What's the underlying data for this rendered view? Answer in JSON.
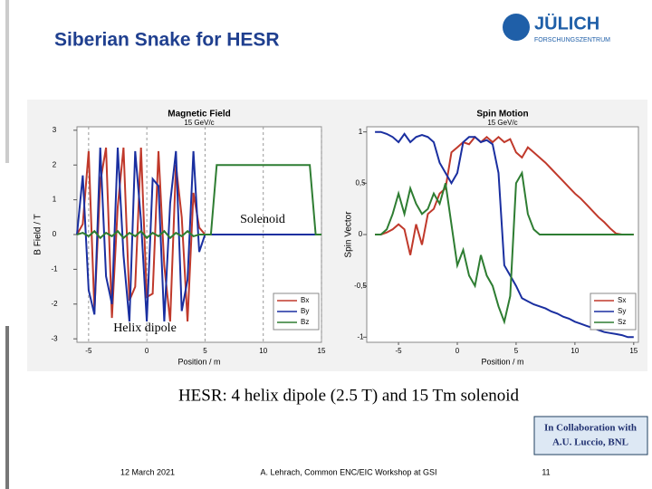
{
  "slide": {
    "title": "Siberian Snake for HESR",
    "logo": {
      "name": "JÜLICH",
      "subtitle": "FORSCHUNGSZENTRUM"
    },
    "caption": "HESR: 4 helix dipole (2.5 T) and 15 Tm solenoid",
    "note": [
      "In Collaboration with",
      "A.U. Luccio, BNL"
    ],
    "footer": {
      "date": "12 March 2021",
      "event": "A. Lehrach, Common ENC/EIC Workshop at GSI",
      "page": "11"
    }
  },
  "chart_data": [
    {
      "type": "line",
      "title": "Magnetic Field",
      "subtitle": "15 GeV/c",
      "x_label": "Position / m",
      "y_label": "B Field / T",
      "annotations": [
        "Solenoid",
        "Helix dipole"
      ],
      "x": [
        -6,
        -5.5,
        -5,
        -4.5,
        -4,
        -3.5,
        -3,
        -2.5,
        -2,
        -1.5,
        -1,
        -0.5,
        0,
        0.5,
        1,
        1.5,
        2,
        2.5,
        3,
        3.5,
        4,
        4.5,
        5,
        5.5,
        6,
        6.5,
        7,
        7.5,
        8,
        8.5,
        9,
        9.5,
        10,
        10.5,
        11,
        11.5,
        12,
        12.5,
        13,
        13.5,
        14,
        14.5,
        15
      ],
      "series": [
        {
          "name": "Bx",
          "color": "#c0392b",
          "values": [
            0,
            0.3,
            2.4,
            -2.2,
            1.5,
            2.5,
            -2.4,
            0.8,
            2.5,
            -1.9,
            -1.5,
            2.5,
            -1.8,
            -1.7,
            2.4,
            -0.9,
            -2.5,
            2.0,
            0.5,
            -2.5,
            1.2,
            0.2,
            0,
            0,
            0,
            0,
            0,
            0,
            0,
            0,
            0,
            0,
            0,
            0,
            0,
            0,
            0,
            0,
            0,
            0,
            0,
            0,
            0
          ]
        },
        {
          "name": "By",
          "color": "#1a2fa0",
          "values": [
            0,
            1.7,
            -1.6,
            -2.3,
            2.5,
            -1.2,
            -2.0,
            2.5,
            -0.6,
            -2.5,
            2.4,
            0.4,
            -2.5,
            1.6,
            1.4,
            -2.5,
            0.9,
            2.4,
            -2.2,
            -1.3,
            2.4,
            -0.5,
            0,
            0,
            0,
            0,
            0,
            0,
            0,
            0,
            0,
            0,
            0,
            0,
            0,
            0,
            0,
            0,
            0,
            0,
            0,
            0,
            0
          ]
        },
        {
          "name": "Bz",
          "color": "#2e7d32",
          "values": [
            0,
            0.05,
            -0.05,
            0.1,
            -0.1,
            0.05,
            -0.05,
            0.1,
            -0.1,
            0.05,
            -0.05,
            0.1,
            -0.1,
            0.05,
            -0.05,
            0.1,
            -0.1,
            0.05,
            -0.05,
            0.1,
            -0.05,
            0,
            0,
            0,
            2,
            2,
            2,
            2,
            2,
            2,
            2,
            2,
            2,
            2,
            2,
            2,
            2,
            2,
            2,
            2,
            2,
            0,
            0
          ]
        }
      ],
      "xlim": [
        -6,
        15
      ],
      "xticks": [
        -5,
        0,
        5,
        10,
        15
      ],
      "ylim": [
        -3.1,
        3.1
      ],
      "yticks": [
        3,
        2,
        1,
        0,
        -1,
        -2,
        -3
      ],
      "grid": true,
      "legend": "lower right"
    },
    {
      "type": "line",
      "title": "Spin Motion",
      "subtitle": "15 GeV/c",
      "x_label": "Position / m",
      "y_label": "Spin Vector",
      "x": [
        -7,
        -6.5,
        -6,
        -5.5,
        -5,
        -4.5,
        -4,
        -3.5,
        -3,
        -2.5,
        -2,
        -1.5,
        -1,
        -0.5,
        0,
        0.5,
        1,
        1.5,
        2,
        2.5,
        3,
        3.5,
        4,
        4.5,
        5,
        5.5,
        6,
        6.5,
        7,
        7.5,
        8,
        8.5,
        9,
        9.5,
        10,
        10.5,
        11,
        11.5,
        12,
        12.5,
        13,
        13.5,
        14,
        14.5,
        15
      ],
      "series": [
        {
          "name": "Sx",
          "color": "#c0392b",
          "values": [
            0,
            0,
            0.02,
            0.05,
            0.1,
            0.05,
            -0.2,
            0.1,
            -0.1,
            0.2,
            0.25,
            0.4,
            0.45,
            0.8,
            0.85,
            0.9,
            0.88,
            0.95,
            0.9,
            0.95,
            0.9,
            0.95,
            0.9,
            0.93,
            0.8,
            0.75,
            0.85,
            0.8,
            0.75,
            0.7,
            0.64,
            0.58,
            0.52,
            0.46,
            0.4,
            0.35,
            0.29,
            0.23,
            0.17,
            0.12,
            0.06,
            0.01,
            0,
            0,
            0
          ]
        },
        {
          "name": "Sy",
          "color": "#1a2fa0",
          "values": [
            1,
            1,
            0.98,
            0.95,
            0.9,
            0.98,
            0.9,
            0.95,
            0.97,
            0.95,
            0.9,
            0.7,
            0.6,
            0.5,
            0.6,
            0.9,
            0.95,
            0.95,
            0.9,
            0.92,
            0.88,
            0.6,
            -0.3,
            -0.4,
            -0.5,
            -0.62,
            -0.65,
            -0.68,
            -0.7,
            -0.72,
            -0.75,
            -0.77,
            -0.8,
            -0.82,
            -0.85,
            -0.87,
            -0.89,
            -0.91,
            -0.93,
            -0.95,
            -0.96,
            -0.97,
            -0.98,
            -1,
            -1
          ]
        },
        {
          "name": "Sz",
          "color": "#2e7d32",
          "values": [
            0,
            0,
            0.05,
            0.2,
            0.4,
            0.2,
            0.45,
            0.3,
            0.2,
            0.25,
            0.4,
            0.3,
            0.5,
            0.1,
            -0.3,
            -0.15,
            -0.4,
            -0.5,
            -0.2,
            -0.4,
            -0.5,
            -0.7,
            -0.85,
            -0.6,
            0.5,
            0.6,
            0.2,
            0.05,
            0,
            0,
            0,
            0,
            0,
            0,
            0,
            0,
            0,
            0,
            0,
            0,
            0,
            0,
            0,
            0,
            0
          ]
        }
      ],
      "xlim": [
        -7.7,
        15.4
      ],
      "xticks": [
        -5,
        0,
        5,
        10,
        15
      ],
      "ylim": [
        -1.05,
        1.05
      ],
      "yticks": [
        1,
        {
          "value": 0.5,
          "label": "0,5"
        },
        0,
        {
          "value": -0.5,
          "label": "-0,5"
        },
        -1
      ],
      "grid": false,
      "legend": "lower right"
    }
  ]
}
